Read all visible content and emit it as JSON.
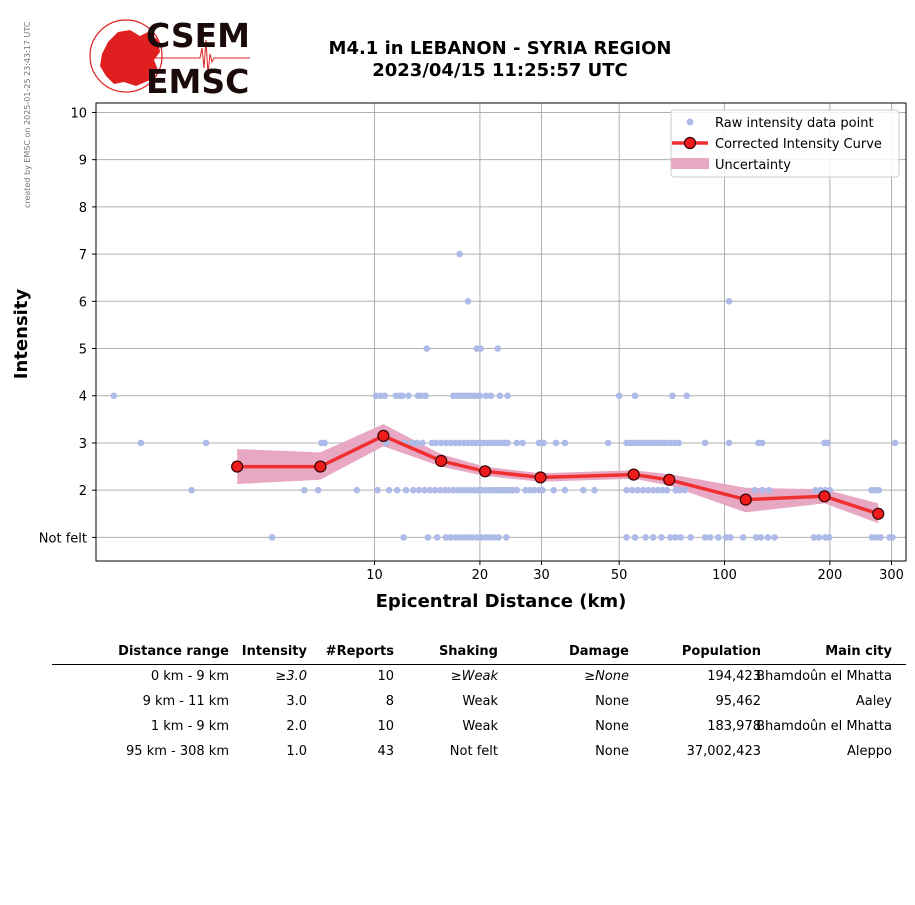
{
  "credit": "created by EMSC on 2025-01-25 23:43:17 UTC",
  "logo": {
    "line1": "CSEM",
    "line2": "EMSC",
    "red": "#e02020",
    "dark": "#1a0a0a"
  },
  "title": {
    "line1": "M4.1 in LEBANON - SYRIA REGION",
    "line2": "2023/04/15 11:25:57 UTC"
  },
  "chart_data": {
    "type": "scatter",
    "xlabel": "Epicentral Distance (km)",
    "ylabel": "Intensity",
    "x_scale": "log",
    "xlim": [
      1.6,
      330
    ],
    "ylim": [
      0.5,
      10.2
    ],
    "x_ticks": [
      10,
      20,
      30,
      50,
      100,
      200,
      300
    ],
    "x_tick_labels": [
      "10",
      "20",
      "30",
      "50",
      "100",
      "200",
      "300"
    ],
    "y_ticks": [
      1,
      2,
      3,
      4,
      5,
      6,
      7,
      8,
      9,
      10
    ],
    "y_tick_labels": [
      "Not felt",
      "2",
      "3",
      "4",
      "5",
      "6",
      "7",
      "8",
      "9",
      "10"
    ],
    "grid": true,
    "legend_position": "top-right",
    "legend": [
      "Raw intensity data point",
      "Corrected Intensity Curve",
      "Uncertainty"
    ],
    "colors": {
      "raw": "#aebbe8",
      "curve": "#f03030",
      "marker_edge": "#330000",
      "marker_fill": "#ee1c1c",
      "uncertainty": "#e8a8c4",
      "grid": "#b0b0b0"
    },
    "raw_points": [
      {
        "x": 1.8,
        "y": 4
      },
      {
        "x": 2.15,
        "y": 3
      },
      {
        "x": 3.3,
        "y": 3
      },
      {
        "x": 3.0,
        "y": 2
      },
      {
        "x": 5.1,
        "y": 1
      },
      {
        "x": 7.05,
        "y": 3
      },
      {
        "x": 7.2,
        "y": 3
      },
      {
        "x": 6.9,
        "y": 2
      },
      {
        "x": 8.9,
        "y": 2
      },
      {
        "x": 6.3,
        "y": 2
      },
      {
        "x": 10.1,
        "y": 4
      },
      {
        "x": 10.4,
        "y": 4
      },
      {
        "x": 10.7,
        "y": 4
      },
      {
        "x": 11.5,
        "y": 4
      },
      {
        "x": 11.8,
        "y": 4
      },
      {
        "x": 12.0,
        "y": 4
      },
      {
        "x": 12.5,
        "y": 4
      },
      {
        "x": 13.3,
        "y": 4
      },
      {
        "x": 13.6,
        "y": 4
      },
      {
        "x": 14.0,
        "y": 4
      },
      {
        "x": 14.1,
        "y": 5
      },
      {
        "x": 10.8,
        "y": 3
      },
      {
        "x": 12.2,
        "y": 3
      },
      {
        "x": 12.8,
        "y": 3
      },
      {
        "x": 13.2,
        "y": 3
      },
      {
        "x": 13.7,
        "y": 3
      },
      {
        "x": 14.6,
        "y": 3
      },
      {
        "x": 15.0,
        "y": 3
      },
      {
        "x": 15.5,
        "y": 3
      },
      {
        "x": 16.0,
        "y": 3
      },
      {
        "x": 10.2,
        "y": 2
      },
      {
        "x": 11.0,
        "y": 2
      },
      {
        "x": 11.6,
        "y": 2
      },
      {
        "x": 12.3,
        "y": 2
      },
      {
        "x": 12.9,
        "y": 2
      },
      {
        "x": 13.4,
        "y": 2
      },
      {
        "x": 13.9,
        "y": 2
      },
      {
        "x": 14.4,
        "y": 2
      },
      {
        "x": 14.9,
        "y": 2
      },
      {
        "x": 15.4,
        "y": 2
      },
      {
        "x": 15.9,
        "y": 2
      },
      {
        "x": 12.1,
        "y": 1
      },
      {
        "x": 14.2,
        "y": 1
      },
      {
        "x": 15.1,
        "y": 1
      },
      {
        "x": 17.5,
        "y": 7
      },
      {
        "x": 18.5,
        "y": 6
      },
      {
        "x": 19.6,
        "y": 5
      },
      {
        "x": 20.1,
        "y": 5
      },
      {
        "x": 22.5,
        "y": 5
      },
      {
        "x": 16.8,
        "y": 4
      },
      {
        "x": 17.2,
        "y": 4
      },
      {
        "x": 17.6,
        "y": 4
      },
      {
        "x": 18.0,
        "y": 4
      },
      {
        "x": 18.4,
        "y": 4
      },
      {
        "x": 18.8,
        "y": 4
      },
      {
        "x": 19.2,
        "y": 4
      },
      {
        "x": 19.6,
        "y": 4
      },
      {
        "x": 20.0,
        "y": 4
      },
      {
        "x": 20.8,
        "y": 4
      },
      {
        "x": 21.5,
        "y": 4
      },
      {
        "x": 22.8,
        "y": 4
      },
      {
        "x": 24.0,
        "y": 4
      },
      {
        "x": 16.5,
        "y": 3
      },
      {
        "x": 17.0,
        "y": 3
      },
      {
        "x": 17.5,
        "y": 3
      },
      {
        "x": 18.0,
        "y": 3
      },
      {
        "x": 18.5,
        "y": 3
      },
      {
        "x": 19.0,
        "y": 3
      },
      {
        "x": 19.5,
        "y": 3
      },
      {
        "x": 20.0,
        "y": 3
      },
      {
        "x": 20.5,
        "y": 3
      },
      {
        "x": 21.0,
        "y": 3
      },
      {
        "x": 21.5,
        "y": 3
      },
      {
        "x": 22.0,
        "y": 3
      },
      {
        "x": 22.5,
        "y": 3
      },
      {
        "x": 23.0,
        "y": 3
      },
      {
        "x": 23.5,
        "y": 3
      },
      {
        "x": 24.0,
        "y": 3
      },
      {
        "x": 25.5,
        "y": 3
      },
      {
        "x": 26.5,
        "y": 3
      },
      {
        "x": 16.3,
        "y": 2
      },
      {
        "x": 16.8,
        "y": 2
      },
      {
        "x": 17.3,
        "y": 2
      },
      {
        "x": 17.8,
        "y": 2
      },
      {
        "x": 18.3,
        "y": 2
      },
      {
        "x": 18.8,
        "y": 2
      },
      {
        "x": 19.3,
        "y": 2
      },
      {
        "x": 19.8,
        "y": 2
      },
      {
        "x": 20.3,
        "y": 2
      },
      {
        "x": 20.8,
        "y": 2
      },
      {
        "x": 21.3,
        "y": 2
      },
      {
        "x": 21.8,
        "y": 2
      },
      {
        "x": 22.3,
        "y": 2
      },
      {
        "x": 22.8,
        "y": 2
      },
      {
        "x": 23.3,
        "y": 2
      },
      {
        "x": 23.8,
        "y": 2
      },
      {
        "x": 24.3,
        "y": 2
      },
      {
        "x": 24.8,
        "y": 2
      },
      {
        "x": 25.5,
        "y": 2
      },
      {
        "x": 27.0,
        "y": 2
      },
      {
        "x": 27.8,
        "y": 2
      },
      {
        "x": 28.6,
        "y": 2
      },
      {
        "x": 29.5,
        "y": 2
      },
      {
        "x": 30.2,
        "y": 2
      },
      {
        "x": 16.0,
        "y": 1
      },
      {
        "x": 16.5,
        "y": 1
      },
      {
        "x": 17.0,
        "y": 1
      },
      {
        "x": 17.5,
        "y": 1
      },
      {
        "x": 18.0,
        "y": 1
      },
      {
        "x": 18.5,
        "y": 1
      },
      {
        "x": 19.0,
        "y": 1
      },
      {
        "x": 19.6,
        "y": 1
      },
      {
        "x": 20.2,
        "y": 1
      },
      {
        "x": 20.8,
        "y": 1
      },
      {
        "x": 21.4,
        "y": 1
      },
      {
        "x": 22.0,
        "y": 1
      },
      {
        "x": 22.6,
        "y": 1
      },
      {
        "x": 23.8,
        "y": 1
      },
      {
        "x": 29.5,
        "y": 3
      },
      {
        "x": 30.4,
        "y": 3
      },
      {
        "x": 33.0,
        "y": 3
      },
      {
        "x": 35.0,
        "y": 3
      },
      {
        "x": 32.5,
        "y": 2
      },
      {
        "x": 35.0,
        "y": 2
      },
      {
        "x": 39.5,
        "y": 2
      },
      {
        "x": 42.5,
        "y": 2
      },
      {
        "x": 46.5,
        "y": 3
      },
      {
        "x": 50.0,
        "y": 4
      },
      {
        "x": 55.5,
        "y": 4
      },
      {
        "x": 52.5,
        "y": 3
      },
      {
        "x": 53.8,
        "y": 3
      },
      {
        "x": 55.0,
        "y": 3
      },
      {
        "x": 56.3,
        "y": 3
      },
      {
        "x": 57.6,
        "y": 3
      },
      {
        "x": 59.0,
        "y": 3
      },
      {
        "x": 60.5,
        "y": 3
      },
      {
        "x": 62.0,
        "y": 3
      },
      {
        "x": 63.5,
        "y": 3
      },
      {
        "x": 65.0,
        "y": 3
      },
      {
        "x": 66.5,
        "y": 3
      },
      {
        "x": 68.0,
        "y": 3
      },
      {
        "x": 70.0,
        "y": 3
      },
      {
        "x": 72.0,
        "y": 3
      },
      {
        "x": 74.0,
        "y": 3
      },
      {
        "x": 52.5,
        "y": 2
      },
      {
        "x": 54.5,
        "y": 2
      },
      {
        "x": 56.5,
        "y": 2
      },
      {
        "x": 58.5,
        "y": 2
      },
      {
        "x": 60.5,
        "y": 2
      },
      {
        "x": 62.5,
        "y": 2
      },
      {
        "x": 64.5,
        "y": 2
      },
      {
        "x": 66.5,
        "y": 2
      },
      {
        "x": 68.5,
        "y": 2
      },
      {
        "x": 72.5,
        "y": 2
      },
      {
        "x": 74.5,
        "y": 2
      },
      {
        "x": 77.0,
        "y": 2
      },
      {
        "x": 52.5,
        "y": 1
      },
      {
        "x": 55.5,
        "y": 1
      },
      {
        "x": 59.5,
        "y": 1
      },
      {
        "x": 62.5,
        "y": 1
      },
      {
        "x": 66.0,
        "y": 1
      },
      {
        "x": 70.0,
        "y": 1
      },
      {
        "x": 72.5,
        "y": 1
      },
      {
        "x": 75.0,
        "y": 1
      },
      {
        "x": 80.0,
        "y": 1
      },
      {
        "x": 88.0,
        "y": 1
      },
      {
        "x": 91.0,
        "y": 1
      },
      {
        "x": 96.0,
        "y": 1
      },
      {
        "x": 101.0,
        "y": 1
      },
      {
        "x": 104.0,
        "y": 1
      },
      {
        "x": 71.0,
        "y": 4
      },
      {
        "x": 78.0,
        "y": 4
      },
      {
        "x": 88.0,
        "y": 3
      },
      {
        "x": 103.0,
        "y": 3
      },
      {
        "x": 103.0,
        "y": 6
      },
      {
        "x": 113.0,
        "y": 1
      },
      {
        "x": 123.0,
        "y": 1
      },
      {
        "x": 127.0,
        "y": 1
      },
      {
        "x": 133.0,
        "y": 1
      },
      {
        "x": 139.0,
        "y": 1
      },
      {
        "x": 125.0,
        "y": 3
      },
      {
        "x": 128.0,
        "y": 3
      },
      {
        "x": 122.0,
        "y": 2
      },
      {
        "x": 128.0,
        "y": 2
      },
      {
        "x": 134.0,
        "y": 2
      },
      {
        "x": 182.0,
        "y": 2
      },
      {
        "x": 188.0,
        "y": 2
      },
      {
        "x": 194.0,
        "y": 2
      },
      {
        "x": 200.0,
        "y": 2
      },
      {
        "x": 193.0,
        "y": 3
      },
      {
        "x": 197.0,
        "y": 3
      },
      {
        "x": 180.0,
        "y": 1
      },
      {
        "x": 186.0,
        "y": 1
      },
      {
        "x": 194.0,
        "y": 1
      },
      {
        "x": 199.0,
        "y": 1
      },
      {
        "x": 263.0,
        "y": 2
      },
      {
        "x": 270.0,
        "y": 2
      },
      {
        "x": 276.0,
        "y": 2
      },
      {
        "x": 264.0,
        "y": 1
      },
      {
        "x": 272.0,
        "y": 1
      },
      {
        "x": 279.0,
        "y": 1
      },
      {
        "x": 296.0,
        "y": 1
      },
      {
        "x": 302.0,
        "y": 1
      },
      {
        "x": 307.0,
        "y": 3
      }
    ],
    "curve": {
      "x": [
        4.05,
        7.0,
        10.6,
        15.5,
        20.7,
        29.8,
        55.0,
        69.5,
        115.0,
        193.0,
        275.0
      ],
      "y": [
        2.5,
        2.5,
        3.15,
        2.62,
        2.4,
        2.27,
        2.33,
        2.22,
        1.8,
        1.87,
        1.5
      ]
    },
    "uncertainty": {
      "x": [
        4.05,
        7.0,
        10.6,
        15.5,
        20.7,
        29.8,
        55.0,
        69.5,
        115.0,
        193.0,
        275.0
      ],
      "lower": [
        2.13,
        2.22,
        2.93,
        2.5,
        2.3,
        2.18,
        2.24,
        2.1,
        1.53,
        1.72,
        1.3
      ],
      "upper": [
        2.87,
        2.8,
        3.4,
        2.76,
        2.5,
        2.36,
        2.42,
        2.34,
        2.05,
        2.02,
        1.72
      ]
    }
  },
  "table": {
    "headers": [
      "Distance range",
      "Intensity",
      "#Reports",
      "Shaking",
      "Damage",
      "Population",
      "Main city"
    ],
    "rows": [
      {
        "range": "0 km -    9 km",
        "intensity": "≥3.0",
        "reports": "10",
        "shaking": "≥Weak",
        "damage": "≥None",
        "population": "194,423",
        "city": "Bhamdoûn el Mhatta"
      },
      {
        "range": "9 km -   11 km",
        "intensity": "3.0",
        "reports": "8",
        "shaking": "Weak",
        "damage": "None",
        "population": "95,462",
        "city": "Aaley"
      },
      {
        "range": "1 km -    9 km",
        "intensity": "2.0",
        "reports": "10",
        "shaking": "Weak",
        "damage": "None",
        "population": "183,978",
        "city": "Bhamdoûn el Mhatta"
      },
      {
        "range": "95 km -  308 km",
        "intensity": "1.0",
        "reports": "43",
        "shaking": "Not felt",
        "damage": "None",
        "population": "37,002,423",
        "city": "Aleppo"
      }
    ]
  }
}
